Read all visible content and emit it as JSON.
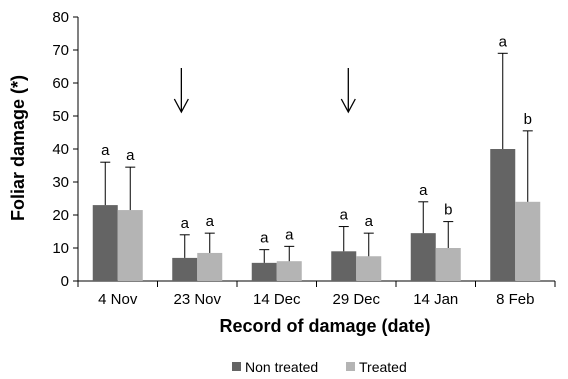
{
  "chart_data": {
    "type": "bar",
    "title": "",
    "xlabel": "Record of damage (date)",
    "ylabel": "Foliar damage (*)",
    "ylim": [
      0,
      80
    ],
    "yticks": [
      0,
      10,
      20,
      30,
      40,
      50,
      60,
      70,
      80
    ],
    "categories": [
      "4 Nov",
      "23 Nov",
      "14 Dec",
      "29 Dec",
      "14 Jan",
      "8 Feb"
    ],
    "series": [
      {
        "name": "Non treated",
        "color": "#646464",
        "values": [
          23,
          7,
          5.5,
          9,
          14.5,
          40
        ],
        "error": [
          13,
          7,
          4,
          7.5,
          9.5,
          29
        ],
        "significance": [
          "a",
          "a",
          "a",
          "a",
          "a",
          "a"
        ]
      },
      {
        "name": "Treated",
        "color": "#b4b4b4",
        "values": [
          21.5,
          8.5,
          6,
          7.5,
          10,
          24
        ],
        "error": [
          13,
          6,
          4.5,
          7,
          8,
          21.5
        ],
        "significance": [
          "a",
          "a",
          "a",
          "a",
          "b",
          "b"
        ]
      }
    ],
    "arrows": [
      {
        "between": [
          "4 Nov",
          "23 Nov"
        ],
        "category_index": 0.8
      },
      {
        "between": [
          "14 Dec",
          "29 Dec"
        ],
        "category_index": 2.9
      }
    ],
    "legend": {
      "position": "bottom"
    },
    "grid": false
  }
}
